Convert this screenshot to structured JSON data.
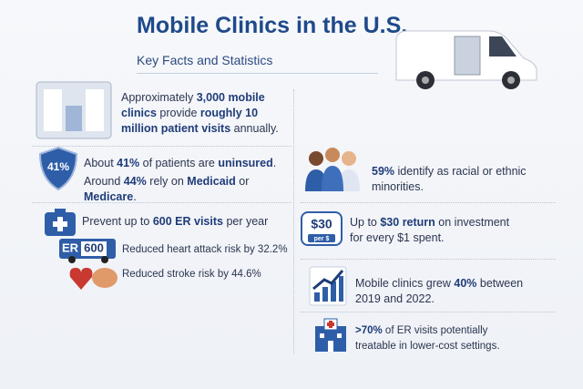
{
  "header": {
    "title": "Mobile Clinics in the U.S.",
    "subtitle": "Key Facts and Statistics"
  },
  "badges": {
    "uninsured": "41%",
    "er": "ER",
    "er_count": "600",
    "roi": "$30",
    "roi_unit": "per $"
  },
  "facts": [
    {
      "segments": [
        {
          "text": "Approximately "
        },
        {
          "text": "3,000 mobile clinics",
          "bold": true
        },
        {
          "text": " provide "
        },
        {
          "text": "roughly 10 million patient visits",
          "bold": true
        },
        {
          "text": " annually."
        }
      ]
    },
    {
      "segments": [
        {
          "text": "About "
        },
        {
          "text": "41%",
          "bold": true
        },
        {
          "text": " of patients are "
        },
        {
          "text": "uninsured",
          "bold": true
        },
        {
          "text": "."
        }
      ]
    },
    {
      "segments": [
        {
          "text": "Around "
        },
        {
          "text": "44%",
          "bold": true
        },
        {
          "text": " rely on "
        },
        {
          "text": "Medicaid",
          "bold": true
        },
        {
          "text": " or "
        },
        {
          "text": "Medicare",
          "bold": true
        },
        {
          "text": "."
        }
      ]
    },
    {
      "segments": [
        {
          "text": "59%",
          "bold": true
        },
        {
          "text": " identify as racial or ethnic minorities."
        }
      ]
    },
    {
      "segments": [
        {
          "text": "Prevent up to "
        },
        {
          "text": "600 ER visits",
          "bold": true
        },
        {
          "text": " per year"
        }
      ]
    },
    {
      "segments": [
        {
          "text": "Reduced heart attack risk by 32.2%"
        }
      ]
    },
    {
      "segments": [
        {
          "text": "Reduced stroke risk by 44.6%"
        }
      ]
    },
    {
      "segments": [
        {
          "text": "Up to "
        },
        {
          "text": "$30 return",
          "bold": true
        },
        {
          "text": " on investment for every $1 spent."
        }
      ]
    },
    {
      "segments": [
        {
          "text": "Mobile clinics grew "
        },
        {
          "text": "40%",
          "bold": true
        },
        {
          "text": " between 2019 and 2022."
        }
      ]
    },
    {
      "segments": [
        {
          "text": ">70%",
          "bold": true
        },
        {
          "text": " of ER visits potentially treatable in lower-cost settings."
        }
      ]
    }
  ]
}
